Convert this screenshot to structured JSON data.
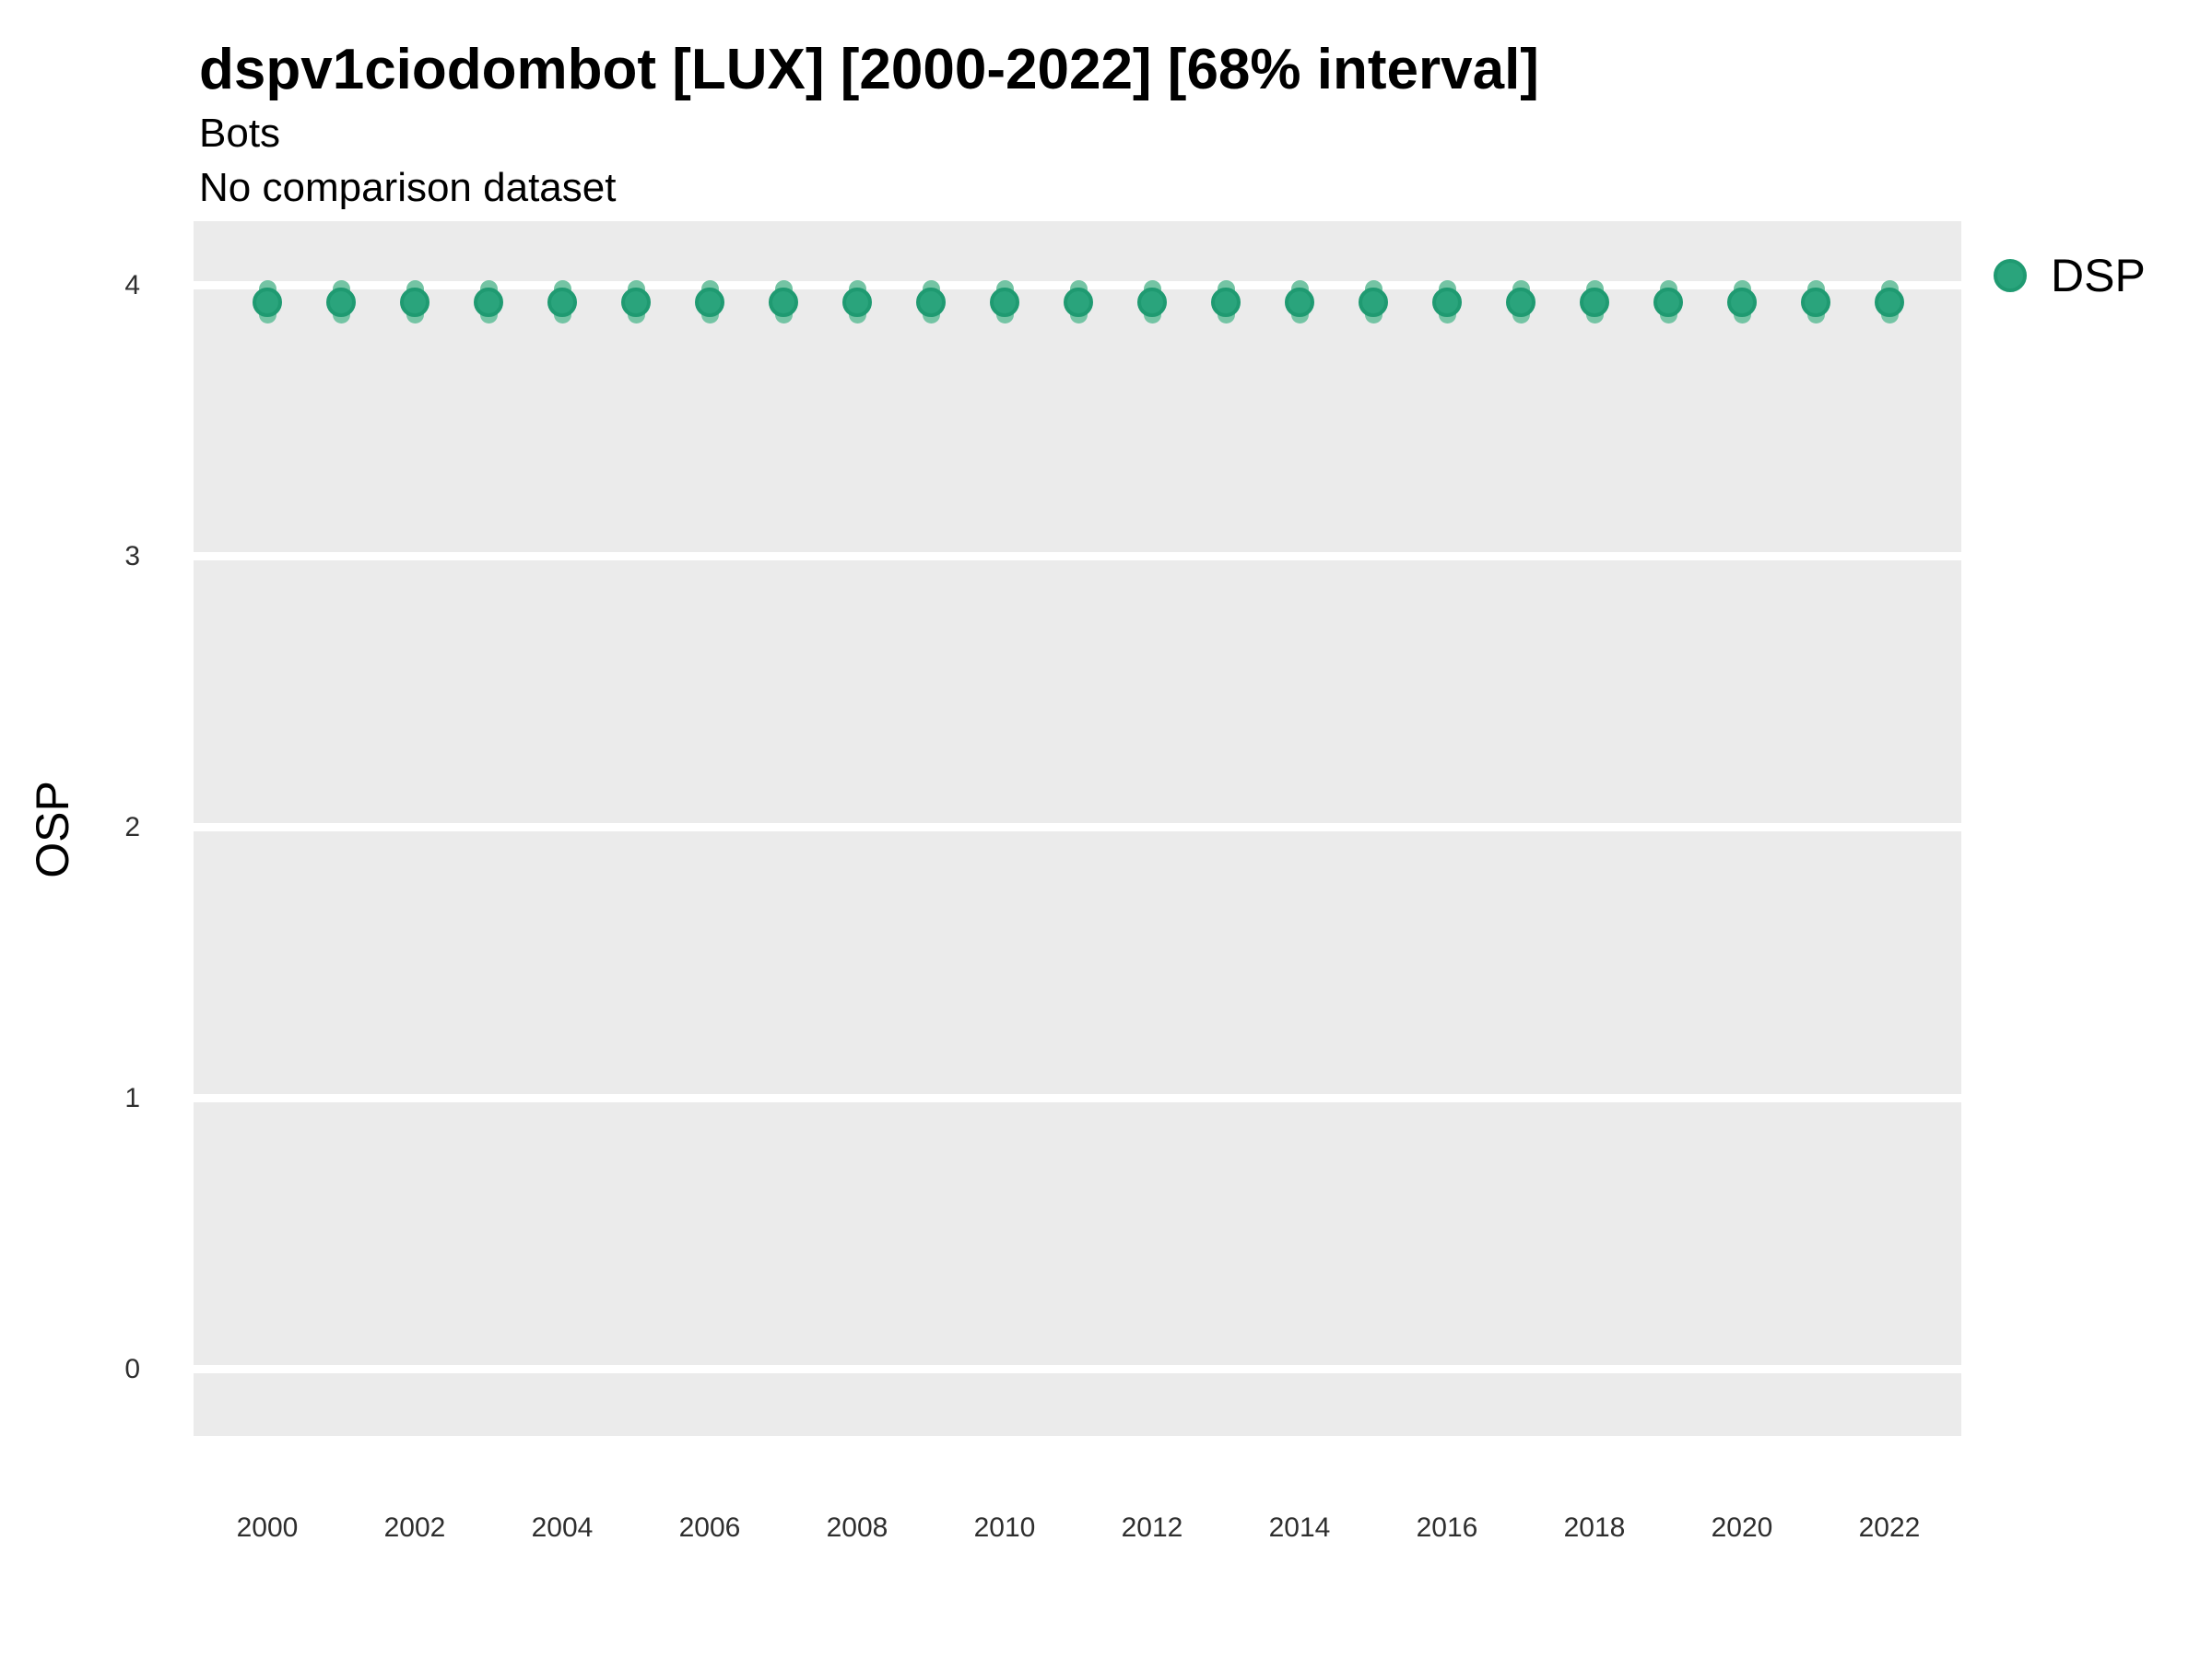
{
  "header": {
    "title": "dspv1ciodombot [LUX] [2000-2022] [68% interval]",
    "subtitle": "Bots",
    "note": "No comparison dataset"
  },
  "legend": {
    "items": [
      {
        "label": "DSP"
      }
    ]
  },
  "chart_data": {
    "type": "scatter",
    "title": "dspv1ciodombot [LUX] [2000-2022] [68% interval]",
    "subtitle": "Bots",
    "note": "No comparison dataset",
    "xlabel": "",
    "ylabel": "OSP",
    "x": [
      2000,
      2001,
      2002,
      2003,
      2004,
      2005,
      2006,
      2007,
      2008,
      2009,
      2010,
      2011,
      2012,
      2013,
      2014,
      2015,
      2016,
      2017,
      2018,
      2019,
      2020,
      2021,
      2022
    ],
    "series": [
      {
        "name": "DSP",
        "values": [
          3.94,
          3.94,
          3.94,
          3.94,
          3.94,
          3.94,
          3.94,
          3.94,
          3.94,
          3.94,
          3.94,
          3.94,
          3.94,
          3.94,
          3.94,
          3.94,
          3.94,
          3.94,
          3.94,
          3.94,
          3.94,
          3.94,
          3.94
        ],
        "interval_low": [
          3.86,
          3.86,
          3.86,
          3.86,
          3.86,
          3.86,
          3.86,
          3.86,
          3.86,
          3.86,
          3.86,
          3.86,
          3.86,
          3.86,
          3.86,
          3.86,
          3.86,
          3.86,
          3.86,
          3.86,
          3.86,
          3.86,
          3.86
        ],
        "interval_high": [
          4.02,
          4.02,
          4.02,
          4.02,
          4.02,
          4.02,
          4.02,
          4.02,
          4.02,
          4.02,
          4.02,
          4.02,
          4.02,
          4.02,
          4.02,
          4.02,
          4.02,
          4.02,
          4.02,
          4.02,
          4.02,
          4.02,
          4.02
        ]
      }
    ],
    "xticks": [
      2000,
      2002,
      2004,
      2006,
      2008,
      2010,
      2012,
      2014,
      2016,
      2018,
      2020,
      2022
    ],
    "yticks": [
      0,
      1,
      2,
      3,
      4
    ],
    "xlim": [
      1999,
      2022.975
    ],
    "ylim": [
      -0.245,
      4.238
    ],
    "grid": "horizontal-major-only",
    "legend_position": "right",
    "colors": {
      "point": "#2AA47C",
      "point_border": "#1F9A71",
      "interval": "#74C4A4",
      "panel_bg": "#EBEBEB",
      "grid": "#FFFFFF"
    }
  }
}
